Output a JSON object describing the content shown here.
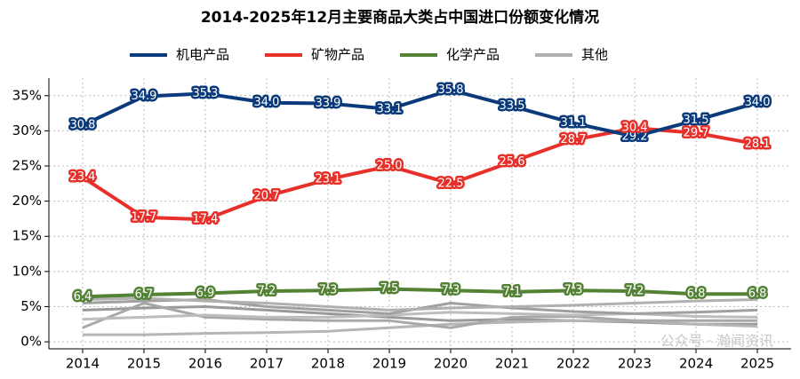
{
  "chart_data": {
    "type": "line",
    "title": "2014-2025年12月主要商品大类占中国进口份额变化情况",
    "x": [
      2014,
      2015,
      2016,
      2017,
      2018,
      2019,
      2020,
      2021,
      2022,
      2023,
      2024,
      2025
    ],
    "xlim": [
      2013.45,
      2025.55
    ],
    "xticks": [
      2014,
      2015,
      2016,
      2017,
      2018,
      2019,
      2020,
      2021,
      2022,
      2023,
      2024,
      2025
    ],
    "ylim": [
      -1,
      37.5
    ],
    "yticks": [
      {
        "value": 0,
        "label": "0%"
      },
      {
        "value": 5,
        "label": "5%"
      },
      {
        "value": 10,
        "label": "10%"
      },
      {
        "value": 15,
        "label": "15%"
      },
      {
        "value": 20,
        "label": "20%"
      },
      {
        "value": 25,
        "label": "25%"
      },
      {
        "value": 30,
        "label": "30%"
      },
      {
        "value": 35,
        "label": "35%"
      }
    ],
    "grid": true,
    "legend": "top",
    "watermark": "公众号 · 瀚闻资讯",
    "series": [
      {
        "name": "机电产品",
        "color": "#0b3a7a",
        "data_labels": true,
        "values": [
          30.8,
          34.9,
          35.3,
          34.0,
          33.9,
          33.1,
          35.8,
          33.5,
          31.1,
          29.2,
          31.5,
          34.0
        ],
        "value_labels": [
          "30.8",
          "34.9",
          "35.3",
          "34.0",
          "33.9",
          "33.1",
          "35.8",
          "33.5",
          "31.1",
          "29.2",
          "31.5",
          "34.0"
        ]
      },
      {
        "name": "矿物产品",
        "color": "#e8302a",
        "data_labels": true,
        "values": [
          23.4,
          17.7,
          17.4,
          20.7,
          23.1,
          25.0,
          22.5,
          25.6,
          28.7,
          30.4,
          29.7,
          28.1
        ],
        "value_labels": [
          "23.4",
          "17.7",
          "17.4",
          "20.7",
          "23.1",
          "25.0",
          "22.5",
          "25.6",
          "28.7",
          "30.4",
          "29.7",
          "28.1"
        ]
      },
      {
        "name": "化学产品",
        "color": "#548235",
        "data_labels": true,
        "values": [
          6.4,
          6.7,
          6.9,
          7.2,
          7.3,
          7.5,
          7.3,
          7.1,
          7.3,
          7.2,
          6.8,
          6.8
        ],
        "value_labels": [
          "6.4",
          "6.7",
          "6.9",
          "7.2",
          "7.3",
          "7.5",
          "7.3",
          "7.1",
          "7.3",
          "7.2",
          "6.8",
          "6.8"
        ]
      },
      {
        "name": "其他",
        "color": "#b0b0b0",
        "values": [
          6.0,
          6.2,
          5.8,
          5.5,
          5.0,
          4.5,
          4.8,
          5.0,
          5.2,
          5.5,
          5.8,
          6.0
        ]
      },
      {
        "color": "#a0a0a0",
        "values": [
          5.5,
          5.8,
          6.0,
          5.0,
          4.5,
          4.0,
          5.5,
          4.8,
          4.3,
          4.0,
          4.2,
          4.5
        ]
      },
      {
        "color": "#bdbdbd",
        "values": [
          3.2,
          3.5,
          3.8,
          3.5,
          3.5,
          3.8,
          4.2,
          4.0,
          3.8,
          4.0,
          3.6,
          3.5
        ]
      },
      {
        "color": "#a8a8a8",
        "values": [
          2.0,
          5.5,
          3.5,
          3.2,
          3.0,
          3.0,
          2.0,
          3.5,
          3.6,
          3.0,
          3.0,
          3.0
        ]
      },
      {
        "color": "#b5b5b5",
        "values": [
          1.0,
          1.0,
          1.2,
          1.3,
          1.5,
          2.0,
          2.5,
          2.8,
          3.0,
          3.0,
          2.5,
          2.2
        ]
      },
      {
        "color": "#999999",
        "values": [
          4.5,
          4.8,
          5.0,
          4.5,
          4.0,
          3.5,
          3.0,
          3.2,
          3.0,
          2.8,
          2.5,
          2.5
        ]
      }
    ]
  }
}
